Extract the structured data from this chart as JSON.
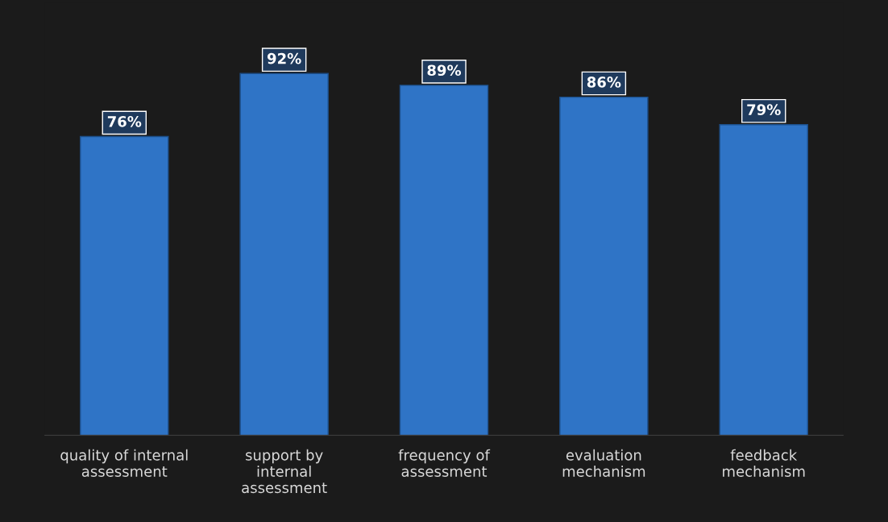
{
  "chart_data": {
    "type": "bar",
    "categories": [
      "quality of internal\nassessment",
      "support by\ninternal\nassessment",
      "frequency of\nassessment",
      "evaluation\nmechanism",
      "feedback\nmechanism"
    ],
    "values": [
      76,
      92,
      89,
      86,
      79
    ],
    "value_labels": [
      "76%",
      "92%",
      "89%",
      "86%",
      "79%"
    ],
    "color": "#2f74c6",
    "ylim": [
      0,
      110
    ],
    "tick_labels": "x",
    "grid": false,
    "legend": false
  }
}
